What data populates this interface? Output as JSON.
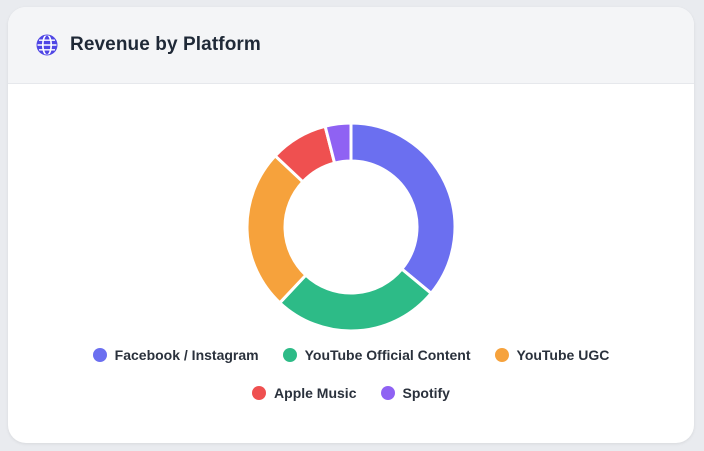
{
  "header": {
    "title": "Revenue by Platform",
    "icon": "globe-icon",
    "icon_color": "#4f46e5"
  },
  "chart_data": {
    "type": "pie",
    "title": "Revenue by Platform",
    "donut": true,
    "legend_position": "bottom",
    "slices": [
      {
        "label": "Facebook / Instagram",
        "value": 36,
        "color": "#6b6ff0"
      },
      {
        "label": "YouTube Official Content",
        "value": 26,
        "color": "#2dbb87"
      },
      {
        "label": "YouTube UGC",
        "value": 25,
        "color": "#f6a23c"
      },
      {
        "label": "Apple Music",
        "value": 9,
        "color": "#ef5050"
      },
      {
        "label": "Spotify",
        "value": 4,
        "color": "#8f62f3"
      }
    ]
  }
}
